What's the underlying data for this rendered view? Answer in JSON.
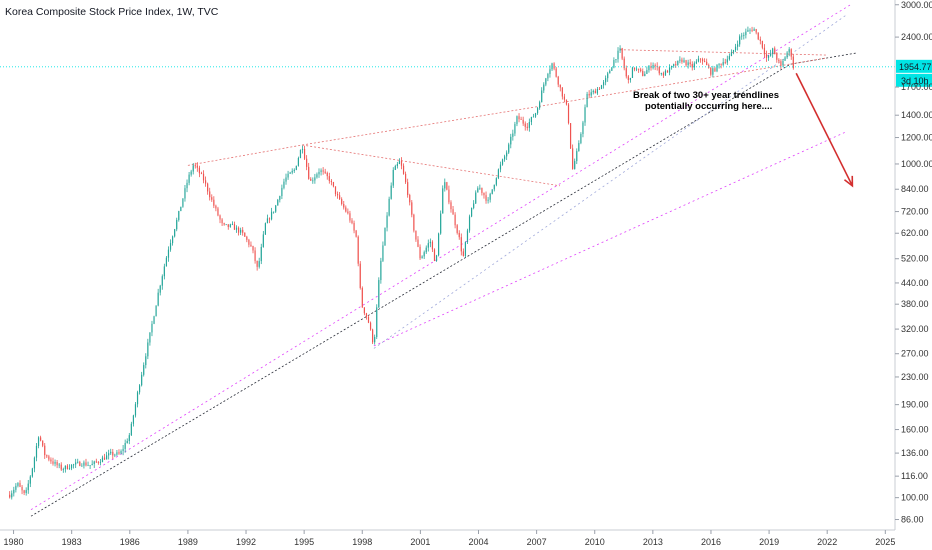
{
  "chart_data": {
    "type": "candlestick",
    "title": "Korea Composite Stock Price Index, 1W, TVC",
    "y_scale": "log",
    "ylim": [
      80,
      3100
    ],
    "xlim": [
      1979.3,
      2025.5
    ],
    "y_ticks": [
      "3000.00",
      "2400.00",
      "1700.00",
      "1400.00",
      "1200.00",
      "1000.00",
      "840.00",
      "720.00",
      "620.00",
      "520.00",
      "440.00",
      "380.00",
      "320.00",
      "270.00",
      "230.00",
      "190.00",
      "160.00",
      "136.00",
      "116.00",
      "100.00",
      "86.00"
    ],
    "x_ticks": [
      "1980",
      "1983",
      "1986",
      "1989",
      "1992",
      "1995",
      "1998",
      "2001",
      "2004",
      "2007",
      "2010",
      "2013",
      "2016",
      "2019",
      "2022",
      "2025",
      "20"
    ],
    "current_price": {
      "label": "1954.77",
      "value": 1954.77,
      "countdown": "3d 10h",
      "color": "#00e5e5"
    },
    "annotation": {
      "line1": "Break of two 30+ year trendlines",
      "line2": "potentially occurring here....",
      "arrow_color": "#d32f2f"
    },
    "colors": {
      "up": "#26a69a",
      "down": "#ef5350",
      "trend_dark": "#2a2e39",
      "trend_pink": "#e040fb",
      "trend_red": "#e57373",
      "trend_blue": "#9fa8da"
    },
    "series": [
      {
        "x": 1979.8,
        "y": 102
      },
      {
        "x": 1980.2,
        "y": 110
      },
      {
        "x": 1980.6,
        "y": 101
      },
      {
        "x": 1981.0,
        "y": 125
      },
      {
        "x": 1981.3,
        "y": 155
      },
      {
        "x": 1981.6,
        "y": 135
      },
      {
        "x": 1982.0,
        "y": 128
      },
      {
        "x": 1982.5,
        "y": 122
      },
      {
        "x": 1983.0,
        "y": 125
      },
      {
        "x": 1983.5,
        "y": 127
      },
      {
        "x": 1984.0,
        "y": 125
      },
      {
        "x": 1984.5,
        "y": 130
      },
      {
        "x": 1985.0,
        "y": 135
      },
      {
        "x": 1985.5,
        "y": 135
      },
      {
        "x": 1986.0,
        "y": 155
      },
      {
        "x": 1986.5,
        "y": 220
      },
      {
        "x": 1987.0,
        "y": 300
      },
      {
        "x": 1987.5,
        "y": 420
      },
      {
        "x": 1988.0,
        "y": 560
      },
      {
        "x": 1988.5,
        "y": 700
      },
      {
        "x": 1989.0,
        "y": 900
      },
      {
        "x": 1989.3,
        "y": 1000
      },
      {
        "x": 1989.8,
        "y": 900
      },
      {
        "x": 1990.3,
        "y": 760
      },
      {
        "x": 1990.8,
        "y": 650
      },
      {
        "x": 1991.3,
        "y": 650
      },
      {
        "x": 1991.8,
        "y": 620
      },
      {
        "x": 1992.3,
        "y": 560
      },
      {
        "x": 1992.6,
        "y": 480
      },
      {
        "x": 1993.0,
        "y": 660
      },
      {
        "x": 1993.5,
        "y": 740
      },
      {
        "x": 1994.0,
        "y": 900
      },
      {
        "x": 1994.5,
        "y": 960
      },
      {
        "x": 1994.9,
        "y": 1140
      },
      {
        "x": 1995.3,
        "y": 880
      },
      {
        "x": 1995.8,
        "y": 960
      },
      {
        "x": 1996.3,
        "y": 900
      },
      {
        "x": 1996.8,
        "y": 780
      },
      {
        "x": 1997.3,
        "y": 700
      },
      {
        "x": 1997.7,
        "y": 600
      },
      {
        "x": 1997.95,
        "y": 380
      },
      {
        "x": 1998.3,
        "y": 340
      },
      {
        "x": 1998.6,
        "y": 285
      },
      {
        "x": 1998.9,
        "y": 480
      },
      {
        "x": 1999.3,
        "y": 720
      },
      {
        "x": 1999.6,
        "y": 950
      },
      {
        "x": 1999.95,
        "y": 1020
      },
      {
        "x": 2000.3,
        "y": 850
      },
      {
        "x": 2000.7,
        "y": 620
      },
      {
        "x": 2001.0,
        "y": 520
      },
      {
        "x": 2001.5,
        "y": 590
      },
      {
        "x": 2001.8,
        "y": 500
      },
      {
        "x": 2002.2,
        "y": 900
      },
      {
        "x": 2002.6,
        "y": 730
      },
      {
        "x": 2003.0,
        "y": 600
      },
      {
        "x": 2003.2,
        "y": 520
      },
      {
        "x": 2003.6,
        "y": 720
      },
      {
        "x": 2004.0,
        "y": 860
      },
      {
        "x": 2004.5,
        "y": 770
      },
      {
        "x": 2005.0,
        "y": 950
      },
      {
        "x": 2005.5,
        "y": 1100
      },
      {
        "x": 2006.0,
        "y": 1380
      },
      {
        "x": 2006.5,
        "y": 1300
      },
      {
        "x": 2007.0,
        "y": 1440
      },
      {
        "x": 2007.5,
        "y": 1850
      },
      {
        "x": 2007.8,
        "y": 2000
      },
      {
        "x": 2008.2,
        "y": 1700
      },
      {
        "x": 2008.6,
        "y": 1450
      },
      {
        "x": 2008.85,
        "y": 960
      },
      {
        "x": 2009.2,
        "y": 1150
      },
      {
        "x": 2009.6,
        "y": 1600
      },
      {
        "x": 2010.0,
        "y": 1650
      },
      {
        "x": 2010.5,
        "y": 1750
      },
      {
        "x": 2011.0,
        "y": 2050
      },
      {
        "x": 2011.3,
        "y": 2200
      },
      {
        "x": 2011.7,
        "y": 1750
      },
      {
        "x": 2012.0,
        "y": 1950
      },
      {
        "x": 2012.5,
        "y": 1850
      },
      {
        "x": 2013.0,
        "y": 2000
      },
      {
        "x": 2013.5,
        "y": 1850
      },
      {
        "x": 2014.0,
        "y": 1950
      },
      {
        "x": 2014.5,
        "y": 2050
      },
      {
        "x": 2015.0,
        "y": 1950
      },
      {
        "x": 2015.5,
        "y": 2080
      },
      {
        "x": 2016.0,
        "y": 1880
      },
      {
        "x": 2016.5,
        "y": 2000
      },
      {
        "x": 2017.0,
        "y": 2100
      },
      {
        "x": 2017.5,
        "y": 2400
      },
      {
        "x": 2017.9,
        "y": 2500
      },
      {
        "x": 2018.2,
        "y": 2550
      },
      {
        "x": 2018.6,
        "y": 2300
      },
      {
        "x": 2018.9,
        "y": 2050
      },
      {
        "x": 2019.2,
        "y": 2200
      },
      {
        "x": 2019.6,
        "y": 1950
      },
      {
        "x": 2019.9,
        "y": 2150
      },
      {
        "x": 2020.1,
        "y": 2200
      },
      {
        "x": 2020.25,
        "y": 1955
      }
    ]
  }
}
